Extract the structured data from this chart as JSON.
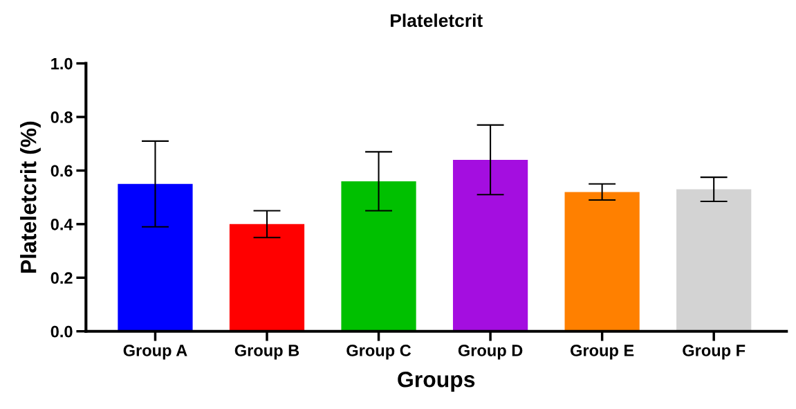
{
  "chart_data": {
    "type": "bar",
    "title": "Plateletcrit",
    "xlabel": "Groups",
    "ylabel": "Plateletcrit (%)",
    "categories": [
      "Group A",
      "Group B",
      "Group C",
      "Group D",
      "Group E",
      "Group F"
    ],
    "values": [
      0.55,
      0.4,
      0.56,
      0.64,
      0.52,
      0.53
    ],
    "errors": [
      0.16,
      0.05,
      0.11,
      0.13,
      0.03,
      0.045
    ],
    "colors": [
      "#0000ff",
      "#ff0000",
      "#00c000",
      "#a40ee0",
      "#ff8000",
      "#d3d3d3"
    ],
    "ylim": [
      0,
      1.0
    ],
    "yticks": [
      {
        "value": 0,
        "label": "0.0"
      },
      {
        "value": 0.2,
        "label": "0.2"
      },
      {
        "value": 0.4,
        "label": "0.4"
      },
      {
        "value": 0.6,
        "label": "0.6"
      },
      {
        "value": 0.8,
        "label": "0.8"
      },
      {
        "value": 1.0,
        "label": "1.0"
      }
    ],
    "grid": false,
    "legend": false
  }
}
